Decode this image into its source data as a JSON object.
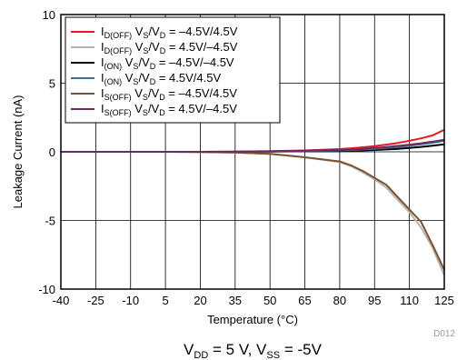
{
  "chart_data": {
    "type": "line",
    "xlabel": "Temperature (°C)",
    "ylabel": "Leakage Current (nA)",
    "xlim": [
      -40,
      125
    ],
    "ylim": [
      -10,
      10
    ],
    "x_ticks": [
      -40,
      -25,
      -10,
      5,
      20,
      35,
      50,
      65,
      80,
      95,
      110,
      125
    ],
    "y_ticks": [
      10,
      5,
      0,
      -5,
      -10
    ],
    "grid": true,
    "legend_position": "top-left",
    "figure_code": "D012",
    "condition": {
      "vdd_main": "V",
      "vdd_sub": "DD",
      "vdd_val": " = 5 V, V",
      "vss_sub": "SS",
      "vss_val": " = -5V"
    },
    "x": [
      -40,
      -25,
      -10,
      5,
      20,
      35,
      50,
      65,
      80,
      85,
      90,
      95,
      100,
      105,
      110,
      115,
      120,
      125
    ],
    "series": [
      {
        "name": "I(DOFF) VS/VD = –4.5V/4.5V",
        "legend": {
          "sym": "I",
          "sub": "D(OFF)",
          "text": "V",
          "s1": "S",
          "mid": "/V",
          "s2": "D",
          "tail": " = –4.5V/4.5V"
        },
        "color": "#e8191f",
        "values": [
          0,
          0,
          0,
          0,
          0,
          0.02,
          0.05,
          0.1,
          0.2,
          0.26,
          0.33,
          0.42,
          0.52,
          0.65,
          0.8,
          0.98,
          1.2,
          1.6
        ]
      },
      {
        "name": "I(DOFF) VS/VD = 4.5V/–4.5V",
        "legend": {
          "sym": "I",
          "sub": "D(OFF)",
          "text": "V",
          "s1": "S",
          "mid": "/V",
          "s2": "D",
          "tail": " = 4.5V/–4.5V"
        },
        "color": "#b4b4b4",
        "values": [
          0,
          0,
          0,
          0,
          -0.02,
          -0.05,
          -0.15,
          -0.4,
          -0.75,
          -1.05,
          -1.5,
          -2.0,
          -2.6,
          -3.5,
          -4.4,
          -5.5,
          -7.0,
          -9.0
        ]
      },
      {
        "name": "I(ON) VS/VD = –4.5V/–4.5V",
        "legend": {
          "sym": "I",
          "sub": "(ON)",
          "text": "V",
          "s1": "S",
          "mid": "/V",
          "s2": "D",
          "tail": " = –4.5V/–4.5V"
        },
        "color": "#000000",
        "values": [
          0,
          0,
          0,
          0,
          0,
          0,
          0.01,
          0.03,
          0.06,
          0.08,
          0.1,
          0.13,
          0.17,
          0.22,
          0.28,
          0.36,
          0.45,
          0.55
        ]
      },
      {
        "name": "I(ON) VS/VD = 4.5V/4.5V",
        "legend": {
          "sym": "I",
          "sub": "(ON)",
          "text": "V",
          "s1": "S",
          "mid": "/V",
          "s2": "D",
          "tail": " = 4.5V/4.5V"
        },
        "color": "#3b6e8f",
        "values": [
          0,
          0,
          0,
          0,
          0,
          0,
          0.02,
          0.05,
          0.1,
          0.13,
          0.17,
          0.22,
          0.28,
          0.35,
          0.44,
          0.54,
          0.66,
          0.8
        ]
      },
      {
        "name": "I(SOFF) VS/VD = –4.5V/4.5V",
        "legend": {
          "sym": "I",
          "sub": "S(OFF)",
          "text": "V",
          "s1": "S",
          "mid": "/V",
          "s2": "D",
          "tail": " = –4.5V/4.5V"
        },
        "color": "#7a5230",
        "values": [
          0,
          0,
          0,
          0,
          -0.02,
          -0.05,
          -0.15,
          -0.4,
          -0.7,
          -1.0,
          -1.4,
          -1.9,
          -2.4,
          -3.3,
          -4.2,
          -5.1,
          -6.8,
          -8.6
        ]
      },
      {
        "name": "I(SOFF) VS/VD = 4.5V/–4.5V",
        "legend": {
          "sym": "I",
          "sub": "S(OFF)",
          "text": "V",
          "s1": "S",
          "mid": "/V",
          "s2": "D",
          "tail": " = 4.5V/–4.5V"
        },
        "color": "#6a2a63",
        "values": [
          0,
          0,
          0,
          0,
          0,
          0.01,
          0.03,
          0.07,
          0.13,
          0.17,
          0.22,
          0.28,
          0.35,
          0.43,
          0.52,
          0.62,
          0.74,
          0.88
        ]
      }
    ]
  }
}
